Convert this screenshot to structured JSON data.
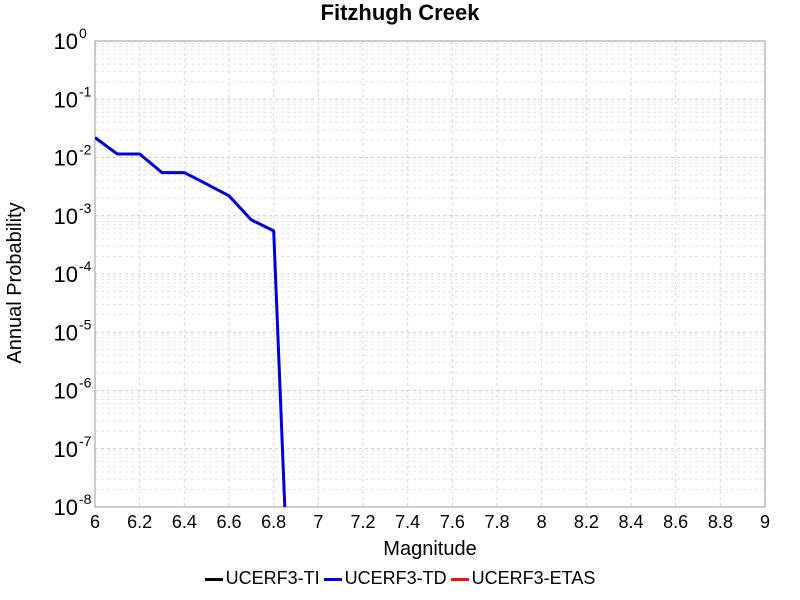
{
  "chart_data": {
    "type": "line",
    "title": "Fitzhugh Creek",
    "xlabel": "Magnitude",
    "ylabel": "Annual Probability",
    "xlim": [
      6,
      9
    ],
    "ylim": [
      1e-08,
      1
    ],
    "yscale": "log",
    "grid": true,
    "legend_position": "bottom",
    "x_ticks": [
      "6",
      "6.2",
      "6.4",
      "6.6",
      "6.8",
      "7",
      "7.2",
      "7.4",
      "7.6",
      "7.8",
      "8",
      "8.2",
      "8.4",
      "8.6",
      "8.8",
      "9"
    ],
    "y_ticks": [
      {
        "base": "10",
        "exp": "-8",
        "value": 1e-08
      },
      {
        "base": "10",
        "exp": "-7",
        "value": 1e-07
      },
      {
        "base": "10",
        "exp": "-6",
        "value": 1e-06
      },
      {
        "base": "10",
        "exp": "-5",
        "value": 1e-05
      },
      {
        "base": "10",
        "exp": "-4",
        "value": 0.0001
      },
      {
        "base": "10",
        "exp": "-3",
        "value": 0.001
      },
      {
        "base": "10",
        "exp": "-2",
        "value": 0.01
      },
      {
        "base": "10",
        "exp": "-1",
        "value": 0.1
      },
      {
        "base": "10",
        "exp": "0",
        "value": 1
      }
    ],
    "series": [
      {
        "name": "UCERF3-TI",
        "color": "#000000",
        "x": [],
        "y": []
      },
      {
        "name": "UCERF3-TD",
        "color": "#0000dd",
        "x": [
          6.0,
          6.1,
          6.2,
          6.3,
          6.4,
          6.5,
          6.6,
          6.7,
          6.8,
          6.85
        ],
        "y": [
          0.022,
          0.0115,
          0.0115,
          0.0055,
          0.0055,
          0.0035,
          0.0022,
          0.00085,
          0.00055,
          1e-08
        ]
      },
      {
        "name": "UCERF3-ETAS",
        "color": "#ee1111",
        "x": [],
        "y": []
      }
    ]
  }
}
